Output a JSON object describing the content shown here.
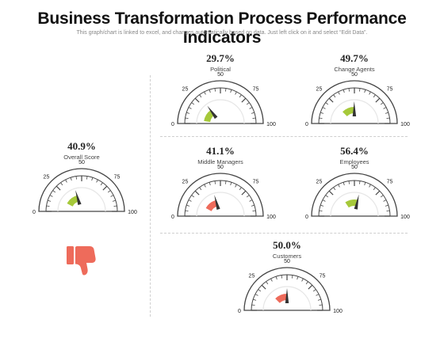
{
  "page": {
    "title": "Business Transformation Process Performance Indicators",
    "subtitle": "This graph/chart is linked to excel, and changes automatically based on data. Just left click on it and select “Edit Data”."
  },
  "colors": {
    "green": "#a6c93a",
    "red": "#ee6b5b",
    "ink": "#444444",
    "track": "#e6e6e6"
  },
  "icons": {
    "thumb": "thumbs-down-icon"
  },
  "chart_data": {
    "type": "gauge",
    "scale": {
      "min": 0,
      "max": 100,
      "ticks": [
        0,
        25,
        50,
        75,
        100
      ]
    },
    "gauges": [
      {
        "key": "overall",
        "label": "Overall Score",
        "value": 40.9,
        "display": "40.9%",
        "color": "green"
      },
      {
        "key": "political",
        "label": "Political",
        "value": 29.7,
        "display": "29.7%",
        "color": "green"
      },
      {
        "key": "change_agents",
        "label": "Change Agents",
        "value": 49.7,
        "display": "49.7%",
        "color": "green"
      },
      {
        "key": "middle_managers",
        "label": "Middle Managers",
        "value": 41.1,
        "display": "41.1%",
        "color": "red"
      },
      {
        "key": "employees",
        "label": "Employees",
        "value": 56.4,
        "display": "56.4%",
        "color": "green"
      },
      {
        "key": "customers",
        "label": "Customers",
        "value": 50.0,
        "display": "50.0%",
        "color": "red"
      }
    ]
  }
}
